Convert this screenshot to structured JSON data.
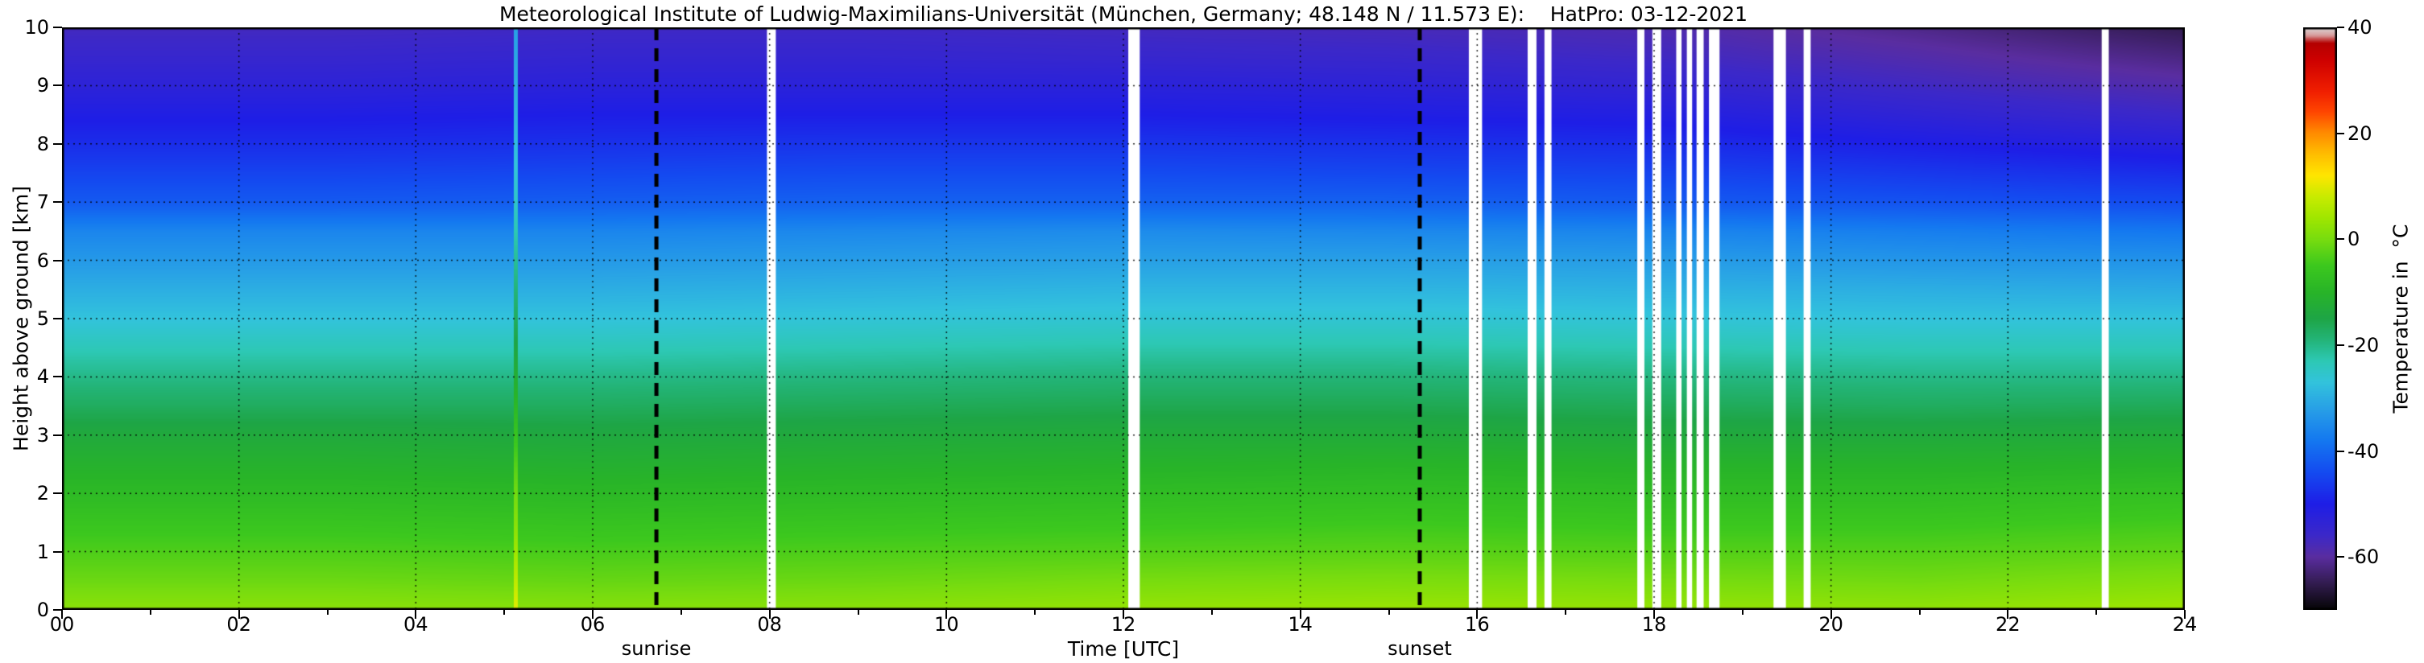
{
  "chart_data": {
    "type": "heatmap",
    "title": "Meteorological Institute of Ludwig-Maximilians-Universität (München, Germany; 48.148 N / 11.573 E):    HatPro: 03-12-2021",
    "xlabel": "Time [UTC]",
    "ylabel": "Height above ground [km]",
    "x_range": [
      0,
      24
    ],
    "y_range": [
      0,
      10
    ],
    "grid_on": true,
    "x_ticks": {
      "values": [
        0,
        2,
        4,
        6,
        8,
        10,
        12,
        14,
        16,
        18,
        20,
        22,
        24
      ],
      "labels": [
        "00",
        "02",
        "04",
        "06",
        "08",
        "10",
        "12",
        "14",
        "16",
        "18",
        "20",
        "22",
        "24"
      ]
    },
    "y_ticks": {
      "values": [
        0,
        1,
        2,
        3,
        4,
        5,
        6,
        7,
        8,
        9,
        10
      ],
      "labels": [
        "0",
        "1",
        "2",
        "3",
        "4",
        "5",
        "6",
        "7",
        "8",
        "9",
        "10"
      ]
    },
    "colorbar": {
      "label": "Temperature in  °C",
      "range": [
        -70,
        40
      ],
      "ticks": [
        40,
        20,
        0,
        -20,
        -40,
        -60
      ],
      "tick_labels": [
        "40",
        "20",
        "0",
        "-20",
        "-40",
        "-60"
      ]
    },
    "annotations": [
      {
        "text": "sunrise",
        "x": 6.72,
        "style": "black-dashed-vertical-line"
      },
      {
        "text": "sunset",
        "x": 15.35,
        "style": "black-dashed-vertical-line"
      }
    ],
    "grid": {
      "times": [
        0,
        3,
        6,
        9,
        12,
        15,
        18,
        21,
        24
      ],
      "heights": [
        0,
        0.5,
        1,
        1.5,
        2,
        2.5,
        3,
        3.5,
        4,
        4.5,
        5,
        5.5,
        6,
        6.5,
        7,
        7.5,
        8,
        8.5,
        9,
        9.5,
        10
      ],
      "temperature_units": "degC",
      "temperature": [
        [
          2,
          2,
          1.5,
          2,
          3,
          3.5,
          3,
          2.5,
          4
        ],
        [
          -1,
          -1,
          -1.5,
          -1,
          0,
          0.5,
          0,
          -0.5,
          1
        ],
        [
          -3.5,
          -3.5,
          -4,
          -3.5,
          -3,
          -2.5,
          -3,
          -3,
          -2
        ],
        [
          -6,
          -6,
          -6.5,
          -6,
          -5.5,
          -5,
          -5.5,
          -5.5,
          -4.5
        ],
        [
          -8.5,
          -8.5,
          -9,
          -8.5,
          -8,
          -7.5,
          -8,
          -8,
          -7
        ],
        [
          -11,
          -11,
          -11.5,
          -11,
          -10.5,
          -10,
          -10.5,
          -10.5,
          -10
        ],
        [
          -13.5,
          -13.5,
          -14,
          -13.5,
          -13,
          -13,
          -13.5,
          -13.5,
          -13
        ],
        [
          -17,
          -17,
          -17,
          -16.5,
          -16,
          -16,
          -16.5,
          -17,
          -16.5
        ],
        [
          -20,
          -20,
          -20,
          -19.5,
          -19,
          -19,
          -19.5,
          -20,
          -20
        ],
        [
          -23.5,
          -23.5,
          -23.5,
          -23,
          -22.5,
          -22.5,
          -23,
          -23.5,
          -23.5
        ],
        [
          -27,
          -27,
          -27,
          -26.5,
          -26,
          -26,
          -26.5,
          -27,
          -27
        ],
        [
          -30,
          -30,
          -30,
          -29.5,
          -29,
          -29,
          -29.5,
          -30,
          -30.5
        ],
        [
          -33,
          -33,
          -33,
          -32.5,
          -32,
          -32,
          -32.5,
          -33.5,
          -34
        ],
        [
          -36,
          -36,
          -36,
          -35.5,
          -35,
          -35.5,
          -36,
          -37,
          -38
        ],
        [
          -42,
          -42,
          -41.5,
          -41,
          -41,
          -41,
          -42,
          -43,
          -44
        ],
        [
          -45,
          -45,
          -44.5,
          -44,
          -44,
          -44.5,
          -45,
          -46.5,
          -48
        ],
        [
          -48,
          -48,
          -47.5,
          -47,
          -47,
          -47.5,
          -48,
          -50,
          -52
        ],
        [
          -50.5,
          -50.5,
          -50,
          -50,
          -50,
          -50.5,
          -51,
          -53.5,
          -56
        ],
        [
          -53,
          -53,
          -52.5,
          -52.5,
          -52.5,
          -53,
          -54,
          -56.5,
          -59
        ],
        [
          -55,
          -55,
          -54.5,
          -54.5,
          -55,
          -55.5,
          -56.5,
          -59,
          -62
        ],
        [
          -57,
          -57,
          -56.5,
          -56.5,
          -57,
          -57.5,
          -58.5,
          -61.5,
          -65
        ]
      ]
    },
    "anomaly_column": {
      "time": 5.13,
      "half_width_hours": 0.02,
      "temps": [
        10,
        7,
        4,
        1.5,
        -0.5,
        -3,
        -6,
        -9,
        -12,
        -14.5,
        -17,
        -19,
        -21,
        -23,
        -25,
        -26.5,
        -28,
        -29,
        -30,
        -31,
        -32
      ]
    },
    "missing_data_intervals": [
      {
        "t": 8.02,
        "w": 0.1
      },
      {
        "t": 12.12,
        "w": 0.13
      },
      {
        "t": 15.98,
        "w": 0.15
      },
      {
        "t": 16.62,
        "w": 0.1
      },
      {
        "t": 16.8,
        "w": 0.08
      },
      {
        "t": 17.85,
        "w": 0.08
      },
      {
        "t": 18.03,
        "w": 0.1
      },
      {
        "t": 18.28,
        "w": 0.06
      },
      {
        "t": 18.4,
        "w": 0.06
      },
      {
        "t": 18.52,
        "w": 0.08
      },
      {
        "t": 18.68,
        "w": 0.12
      },
      {
        "t": 19.42,
        "w": 0.14
      },
      {
        "t": 19.73,
        "w": 0.08
      },
      {
        "t": 23.1,
        "w": 0.08
      }
    ],
    "colormap": [
      [
        -70,
        "#050505"
      ],
      [
        -65,
        "#321c50"
      ],
      [
        -60,
        "#5a2da0"
      ],
      [
        -56,
        "#3c28c8"
      ],
      [
        -50,
        "#1e1ee6"
      ],
      [
        -44,
        "#144bf0"
      ],
      [
        -38,
        "#1478f0"
      ],
      [
        -32,
        "#28a0e6"
      ],
      [
        -27,
        "#32c3dc"
      ],
      [
        -23,
        "#2dc8b4"
      ],
      [
        -19,
        "#23b478"
      ],
      [
        -15,
        "#1ea546"
      ],
      [
        -10,
        "#28b428"
      ],
      [
        -5,
        "#3cc81e"
      ],
      [
        0,
        "#78dc0f"
      ],
      [
        4,
        "#a0e600"
      ],
      [
        8,
        "#c8eb00"
      ],
      [
        12,
        "#ffe600"
      ],
      [
        16,
        "#ffbe00"
      ],
      [
        20,
        "#ff8c00"
      ],
      [
        24,
        "#ff4600"
      ],
      [
        28,
        "#f01e00"
      ],
      [
        34,
        "#cd0000"
      ],
      [
        37,
        "#b40000"
      ],
      [
        38.5,
        "#d79b9b"
      ],
      [
        40,
        "#dcdcdc"
      ]
    ]
  }
}
